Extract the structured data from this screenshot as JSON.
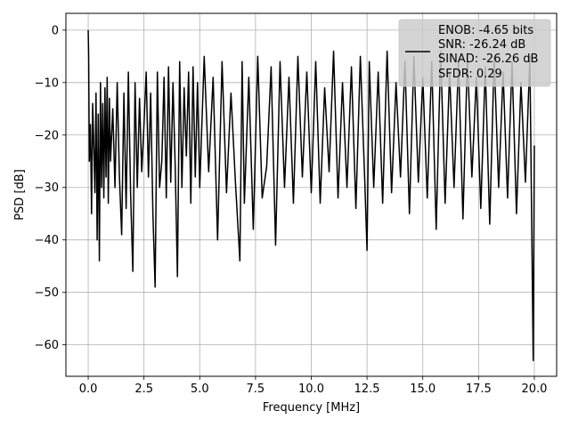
{
  "chart_data": {
    "type": "line",
    "title": "",
    "xlabel": "Frequency [MHz]",
    "ylabel": "PSD [dB]",
    "xlim": [
      -1.0,
      21.0
    ],
    "ylim": [
      -66.0,
      3.2
    ],
    "xticks": [
      0.0,
      2.5,
      5.0,
      7.5,
      10.0,
      12.5,
      15.0,
      17.5,
      20.0
    ],
    "xtick_labels": [
      "0.0",
      "2.5",
      "5.0",
      "7.5",
      "10.0",
      "12.5",
      "15.0",
      "17.5",
      "20.0"
    ],
    "yticks": [
      0,
      -10,
      -20,
      -30,
      -40,
      -50,
      -60
    ],
    "ytick_labels": [
      "0",
      "−10",
      "−20",
      "−30",
      "−40",
      "−50",
      "−60"
    ],
    "grid": true,
    "legend_position": "top-right",
    "legend_lines": [
      "ENOB: -4.65 bits",
      "SNR: -26.24 dB",
      "SINAD: -26.26 dB",
      "SFDR: 0.29"
    ],
    "series": [
      {
        "color": "#000000",
        "x": [
          0.0,
          0.02,
          0.05,
          0.1,
          0.15,
          0.2,
          0.25,
          0.3,
          0.35,
          0.4,
          0.45,
          0.5,
          0.55,
          0.6,
          0.65,
          0.7,
          0.75,
          0.8,
          0.85,
          0.9,
          0.95,
          1.0,
          1.1,
          1.2,
          1.3,
          1.4,
          1.5,
          1.6,
          1.7,
          1.8,
          1.9,
          2.0,
          2.1,
          2.2,
          2.3,
          2.4,
          2.5,
          2.6,
          2.7,
          2.8,
          2.9,
          3.0,
          3.1,
          3.2,
          3.3,
          3.4,
          3.5,
          3.6,
          3.7,
          3.8,
          3.9,
          4.0,
          4.1,
          4.2,
          4.3,
          4.4,
          4.5,
          4.6,
          4.7,
          4.8,
          4.9,
          5.0,
          5.2,
          5.4,
          5.6,
          5.8,
          6.0,
          6.2,
          6.4,
          6.6,
          6.8,
          6.9,
          7.0,
          7.2,
          7.4,
          7.6,
          7.8,
          8.0,
          8.2,
          8.4,
          8.6,
          8.8,
          9.0,
          9.2,
          9.4,
          9.6,
          9.8,
          10.0,
          10.2,
          10.4,
          10.6,
          10.8,
          11.0,
          11.2,
          11.4,
          11.6,
          11.8,
          12.0,
          12.2,
          12.4,
          12.5,
          12.6,
          12.8,
          13.0,
          13.2,
          13.4,
          13.6,
          13.8,
          14.0,
          14.2,
          14.4,
          14.6,
          14.8,
          15.0,
          15.2,
          15.4,
          15.6,
          15.8,
          16.0,
          16.2,
          16.4,
          16.6,
          16.8,
          17.0,
          17.2,
          17.4,
          17.6,
          17.8,
          18.0,
          18.2,
          18.4,
          18.6,
          18.8,
          19.0,
          19.2,
          19.4,
          19.6,
          19.8,
          19.95,
          20.0
        ],
        "y": [
          0.0,
          -5,
          -25,
          -18,
          -35,
          -14,
          -22,
          -31,
          -12,
          -40,
          -16,
          -44,
          -10,
          -30,
          -14,
          -32,
          -11,
          -28,
          -9,
          -33,
          -13,
          -25,
          -15,
          -30,
          -10,
          -28,
          -39,
          -12,
          -34,
          -8,
          -31,
          -46,
          -10,
          -30,
          -13,
          -27,
          -18,
          -8,
          -28,
          -12,
          -35,
          -49,
          -8,
          -30,
          -25,
          -9,
          -32,
          -7,
          -29,
          -10,
          -26,
          -47,
          -6,
          -30,
          -11,
          -24,
          -8,
          -33,
          -7,
          -28,
          -10,
          -30,
          -5,
          -27,
          -9,
          -40,
          -6,
          -31,
          -12,
          -29,
          -44,
          -6,
          -33,
          -9,
          -38,
          -5,
          -32,
          -26,
          -7,
          -41,
          -6,
          -30,
          -9,
          -33,
          -5,
          -28,
          -8,
          -31,
          -6,
          -33,
          -11,
          -27,
          -4,
          -32,
          -10,
          -30,
          -7,
          -34,
          -5,
          -29,
          -42,
          -6,
          -30,
          -8,
          -33,
          -4,
          -31,
          -10,
          -28,
          -6,
          -35,
          -5,
          -29,
          -9,
          -32,
          -6,
          -38,
          -4,
          -33,
          -8,
          -30,
          -6,
          -36,
          -5,
          -28,
          -9,
          -34,
          -7,
          -37,
          -5,
          -30,
          -8,
          -32,
          -6,
          -35,
          -10,
          -29,
          -5,
          -63,
          -22
        ]
      }
    ]
  }
}
